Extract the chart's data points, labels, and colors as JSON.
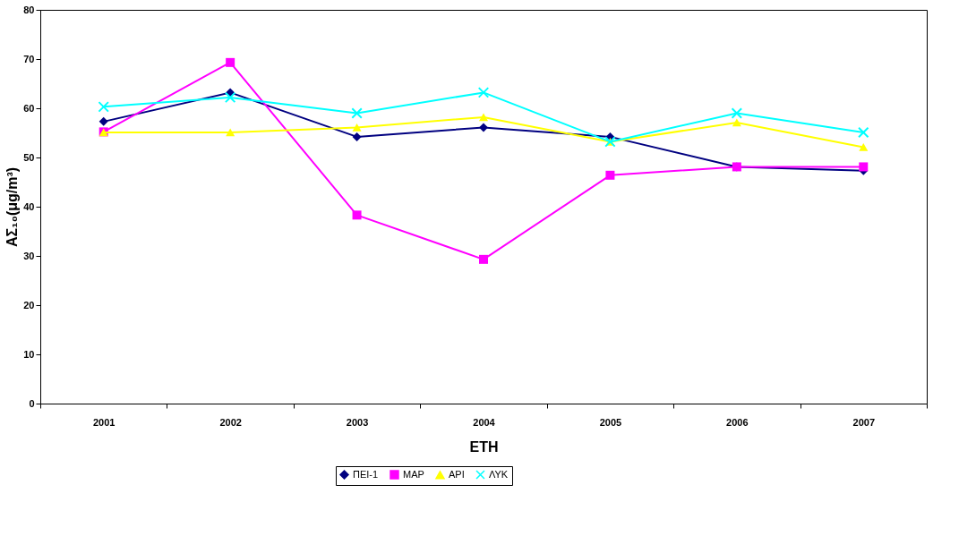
{
  "chart_data": {
    "type": "line",
    "xlabel": "ΕΤΗ",
    "ylabel": "ΑΣ₁₀(μg/m³)",
    "categories": [
      "2001",
      "2002",
      "2003",
      "2004",
      "2005",
      "2006",
      "2007"
    ],
    "ylim": [
      0,
      80
    ],
    "yticks": [
      0,
      10,
      20,
      30,
      40,
      50,
      60,
      70,
      80
    ],
    "grid": false,
    "legend": "bottom",
    "line_style": "solid",
    "series": [
      {
        "name": "ΠΕΙ-1",
        "color": "#000080",
        "marker": "diamond",
        "values": [
          57.3,
          63.2,
          54.2,
          56.1,
          54.2,
          48.1,
          47.3
        ]
      },
      {
        "name": "ΜΑΡ",
        "color": "#ff00ff",
        "marker": "square",
        "values": [
          55.2,
          69.3,
          38.3,
          29.3,
          46.4,
          48.1,
          48.1
        ]
      },
      {
        "name": "ΑΡΙ",
        "color": "#ffff00",
        "marker": "triangle",
        "values": [
          55.1,
          55.1,
          56.1,
          58.2,
          53.2,
          57.1,
          52.1
        ]
      },
      {
        "name": "ΛΥΚ",
        "color": "#00ffff",
        "marker": "cross",
        "values": [
          60.3,
          62.2,
          59.0,
          63.2,
          53.2,
          59.0,
          55.1
        ]
      }
    ]
  }
}
